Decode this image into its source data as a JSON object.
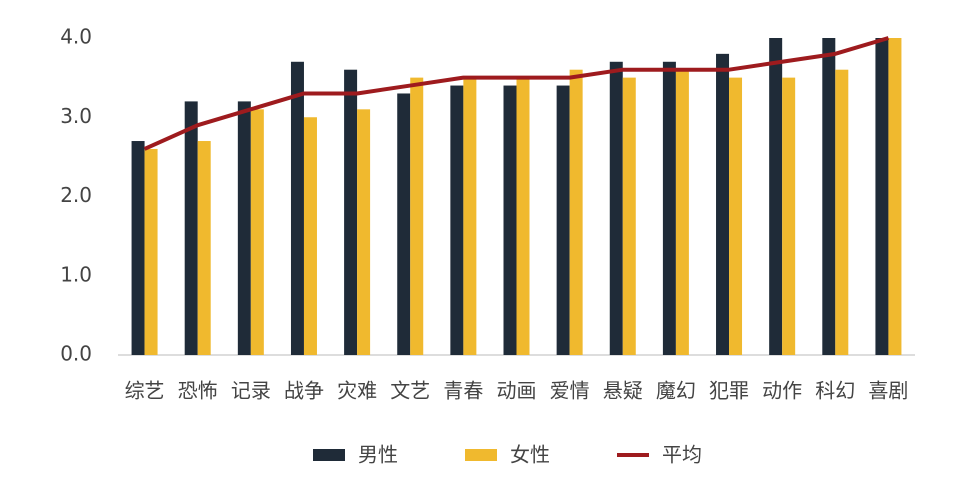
{
  "chart_data": {
    "type": "bar-line",
    "categories": [
      "综艺",
      "恐怖",
      "记录",
      "战争",
      "灾难",
      "文艺",
      "青春",
      "动画",
      "爱情",
      "悬疑",
      "魔幻",
      "犯罪",
      "动作",
      "科幻",
      "喜剧"
    ],
    "series": [
      {
        "name": "男性",
        "type": "bar",
        "color": "#1f2b38",
        "values": [
          2.7,
          3.2,
          3.2,
          3.7,
          3.6,
          3.3,
          3.4,
          3.4,
          3.4,
          3.7,
          3.7,
          3.8,
          4.0,
          4.0,
          4.0
        ]
      },
      {
        "name": "女性",
        "type": "bar",
        "color": "#f0b92e",
        "values": [
          2.6,
          2.7,
          3.1,
          3.0,
          3.1,
          3.5,
          3.5,
          3.5,
          3.6,
          3.5,
          3.6,
          3.5,
          3.5,
          3.6,
          4.0
        ]
      },
      {
        "name": "平均",
        "type": "line",
        "color": "#9e1b1e",
        "values": [
          2.6,
          2.9,
          3.1,
          3.3,
          3.3,
          3.4,
          3.5,
          3.5,
          3.5,
          3.6,
          3.6,
          3.6,
          3.7,
          3.8,
          4.0
        ]
      }
    ],
    "ylim": [
      0,
      4
    ],
    "yticks": [
      {
        "value": 0,
        "label": "0.0"
      },
      {
        "value": 1,
        "label": "1.0"
      },
      {
        "value": 2,
        "label": "2.0"
      },
      {
        "value": 3,
        "label": "3.0"
      },
      {
        "value": 4,
        "label": "4.0"
      }
    ],
    "grid": false
  }
}
